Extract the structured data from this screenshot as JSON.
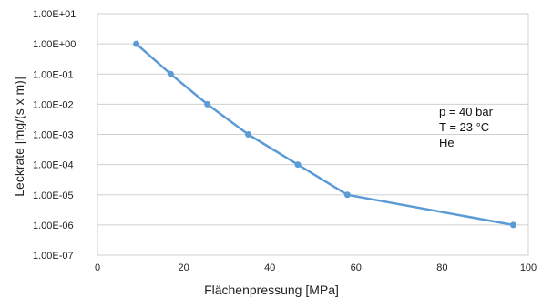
{
  "chart_data": {
    "type": "line",
    "xlabel": "Flächenpressung [MPa]",
    "ylabel": "Leckrate [mg/(s x m)]",
    "x_ticks": [
      "0",
      "20",
      "40",
      "60",
      "80",
      "100"
    ],
    "y_ticks": [
      "1.00E-07",
      "1.00E-06",
      "1.00E-05",
      "1.00E-04",
      "1.00E-03",
      "1.00E-02",
      "1.00E-01",
      "1.00E+00",
      "1.00E+01"
    ],
    "xlim": [
      0,
      100
    ],
    "ylim": [
      1e-07,
      10
    ],
    "y_scale": "log",
    "grid": "horizontal",
    "series": [
      {
        "color": "#5b9bd5",
        "x": [
          9,
          17,
          25.5,
          35,
          46.5,
          58,
          96.5
        ],
        "y": [
          1.0,
          0.1,
          0.01,
          0.001,
          0.0001,
          1e-05,
          1e-06
        ]
      }
    ],
    "annotation": [
      "p = 40 bar",
      "T = 23 °C",
      "He"
    ]
  }
}
